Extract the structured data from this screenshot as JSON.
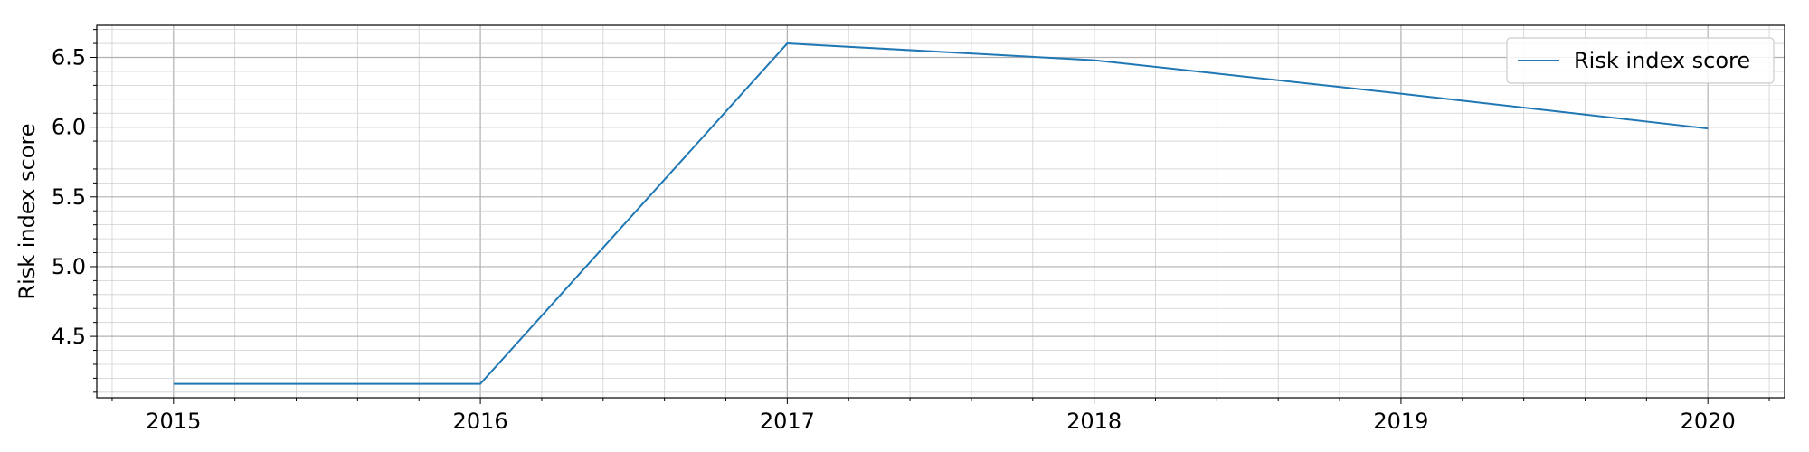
{
  "chart_data": {
    "type": "line",
    "title": "",
    "xlabel": "",
    "ylabel": "Risk index score",
    "x": [
      2015,
      2016,
      2017,
      2018,
      2019,
      2020
    ],
    "x_tick_labels": [
      "2015",
      "2016",
      "2017",
      "2018",
      "2019",
      "2020"
    ],
    "y_tick_labels": [
      "4.5",
      "5.0",
      "5.5",
      "6.0",
      "6.5"
    ],
    "xlim": [
      2014.75,
      2020.25
    ],
    "ylim": [
      4.06,
      6.73
    ],
    "grid": true,
    "legend_position": "top-right",
    "series": [
      {
        "name": "Risk index score",
        "color": "#1f77b4",
        "values": [
          4.16,
          4.16,
          6.6,
          6.48,
          6.24,
          5.99
        ]
      }
    ]
  }
}
